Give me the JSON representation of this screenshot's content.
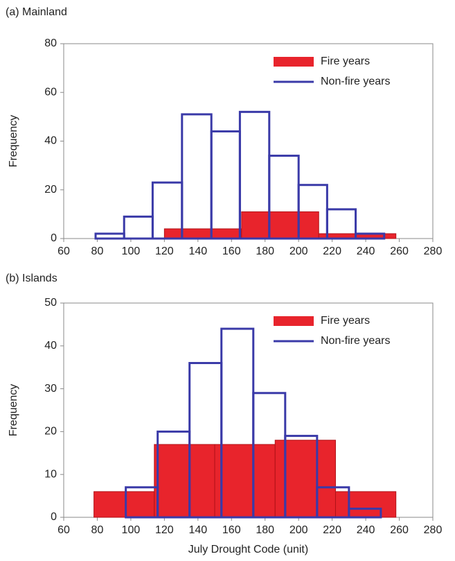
{
  "chart_data": [
    {
      "type": "histogram",
      "title": "(a) Mainland",
      "ylabel": "Frequency",
      "xlim": [
        60,
        280
      ],
      "xticks": [
        60,
        80,
        100,
        120,
        140,
        160,
        180,
        200,
        220,
        240,
        260,
        280
      ],
      "ylim": [
        0,
        80
      ],
      "yticks": [
        0,
        20,
        40,
        60,
        80
      ],
      "legend": "upper right",
      "series": [
        {
          "name": "Fire years",
          "color": "#e8242c",
          "style": "filled",
          "bins": [
            120,
            166,
            212,
            258
          ],
          "values": [
            4,
            11,
            2
          ]
        },
        {
          "name": "Non-fire years",
          "color": "#3a3aa8",
          "style": "outline",
          "bins": [
            79,
            96,
            113,
            130.5,
            148,
            165,
            182.5,
            200,
            217,
            234,
            251
          ],
          "values": [
            2,
            9,
            23,
            51,
            44,
            52,
            34,
            22,
            12,
            2
          ]
        }
      ]
    },
    {
      "type": "histogram",
      "title": "(b) Islands",
      "ylabel": "Frequency",
      "xlabel": "July Drought Code (unit)",
      "xlim": [
        60,
        280
      ],
      "xticks": [
        60,
        80,
        100,
        120,
        140,
        160,
        180,
        200,
        220,
        240,
        260,
        280
      ],
      "ylim": [
        0,
        50
      ],
      "yticks": [
        0,
        10,
        20,
        30,
        40,
        50
      ],
      "legend": "upper right",
      "series": [
        {
          "name": "Fire years",
          "color": "#e8242c",
          "style": "filled",
          "bins": [
            78,
            114,
            150,
            186,
            222,
            258
          ],
          "values": [
            6,
            17,
            17,
            18,
            6
          ]
        },
        {
          "name": "Non-fire years",
          "color": "#3a3aa8",
          "style": "outline",
          "bins": [
            97,
            116,
            135,
            154,
            173,
            192,
            211,
            230,
            249
          ],
          "values": [
            7,
            20,
            36,
            44,
            29,
            19,
            7,
            2
          ]
        }
      ]
    }
  ]
}
